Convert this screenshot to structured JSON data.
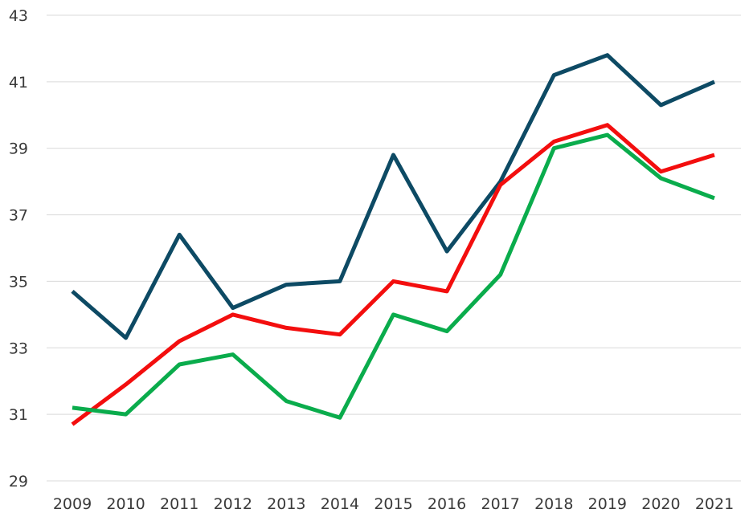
{
  "chart_data": {
    "type": "line",
    "title": "",
    "xlabel": "",
    "ylabel": "",
    "grid": "horizontal",
    "legend": "none",
    "ylim": [
      29,
      43
    ],
    "yticks": [
      29,
      31,
      33,
      35,
      37,
      39,
      41,
      43
    ],
    "categories": [
      "2009",
      "2010",
      "2011",
      "2012",
      "2013",
      "2014",
      "2015",
      "2016",
      "2017",
      "2018",
      "2019",
      "2020",
      "2021"
    ],
    "series": [
      {
        "color": "#0d4a64",
        "values": [
          34.7,
          33.3,
          36.4,
          34.2,
          34.9,
          35.0,
          38.8,
          35.9,
          38.0,
          41.2,
          41.8,
          40.3,
          41.0
        ]
      },
      {
        "color": "#f30e0e",
        "values": [
          30.7,
          31.9,
          33.2,
          34.0,
          33.6,
          33.4,
          35.0,
          34.7,
          37.9,
          39.2,
          39.7,
          38.3,
          38.8
        ]
      },
      {
        "color": "#0aac4c",
        "values": [
          31.2,
          31.0,
          32.5,
          32.8,
          31.4,
          30.9,
          34.0,
          33.5,
          35.2,
          39.0,
          39.4,
          38.1,
          37.5
        ]
      }
    ]
  }
}
